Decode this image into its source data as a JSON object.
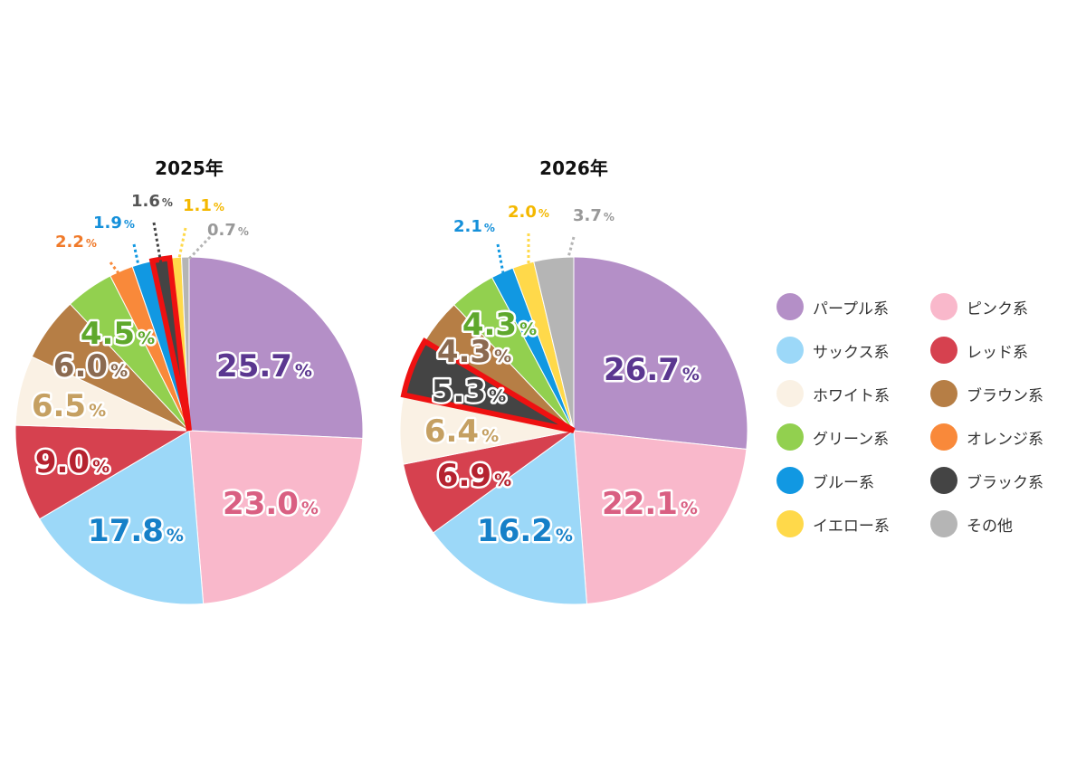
{
  "colors": {
    "purple": "#B48FC7",
    "pink": "#F9B8CB",
    "sax": "#9CD8F8",
    "white": "#FAF1E4",
    "green": "#92D04F",
    "blue": "#1198E2",
    "yellow": "#FFD94A",
    "red": "#D6414F",
    "brown": "#B67E45",
    "orange": "#F9893A",
    "black": "#444444",
    "other": "#B5B5B5",
    "highlight": "#EE1111"
  },
  "legend": [
    {
      "label": "パープル系",
      "color": "purple"
    },
    {
      "label": "ピンク系",
      "color": "pink"
    },
    {
      "label": "サックス系",
      "color": "sax"
    },
    {
      "label": "レッド系",
      "color": "red"
    },
    {
      "label": "ホワイト系",
      "color": "white"
    },
    {
      "label": "ブラウン系",
      "color": "brown"
    },
    {
      "label": "グリーン系",
      "color": "green"
    },
    {
      "label": "オレンジ系",
      "color": "orange"
    },
    {
      "label": "ブルー系",
      "color": "blue"
    },
    {
      "label": "ブラック系",
      "color": "black"
    },
    {
      "label": "イエロー系",
      "color": "yellow"
    },
    {
      "label": "その他",
      "color": "other"
    }
  ],
  "chart_data": [
    {
      "type": "pie",
      "title": "2025年",
      "unit": "%",
      "highlighted": "ブラック系",
      "slices": [
        {
          "label": "パープル系",
          "value": 25.7,
          "display": "25.7",
          "color": "purple",
          "text_color": "#5B3790"
        },
        {
          "label": "ピンク系",
          "value": 23.0,
          "display": "23.0",
          "color": "pink",
          "text_color": "#D95F82"
        },
        {
          "label": "サックス系",
          "value": 17.8,
          "display": "17.8",
          "color": "sax",
          "text_color": "#1680C8"
        },
        {
          "label": "レッド系",
          "value": 9.0,
          "display": "9.0",
          "color": "red",
          "text_color": "#B5222F"
        },
        {
          "label": "ホワイト系",
          "value": 6.5,
          "display": "6.5",
          "color": "white",
          "text_color": "#C5A062"
        },
        {
          "label": "ブラウン系",
          "value": 6.0,
          "display": "6.0",
          "color": "brown",
          "text_color": "#8B6A50"
        },
        {
          "label": "グリーン系",
          "value": 4.5,
          "display": "4.5",
          "color": "green",
          "text_color": "#5FA82C"
        },
        {
          "label": "オレンジ系",
          "value": 2.2,
          "display": "2.2",
          "color": "orange",
          "text_color": "#F07A2A"
        },
        {
          "label": "ブルー系",
          "value": 1.9,
          "display": "1.9",
          "color": "blue",
          "text_color": "#1590DA"
        },
        {
          "label": "ブラック系",
          "value": 1.6,
          "display": "1.6",
          "color": "black",
          "text_color": "#555555"
        },
        {
          "label": "イエロー系",
          "value": 1.1,
          "display": "1.1",
          "color": "yellow",
          "text_color": "#F4B800"
        },
        {
          "label": "その他",
          "value": 0.7,
          "display": "0.7",
          "color": "other",
          "text_color": "#999999"
        }
      ]
    },
    {
      "type": "pie",
      "title": "2026年",
      "unit": "%",
      "highlighted": "ブラック系",
      "slices": [
        {
          "label": "パープル系",
          "value": 26.7,
          "display": "26.7",
          "color": "purple",
          "text_color": "#5B3790"
        },
        {
          "label": "ピンク系",
          "value": 22.1,
          "display": "22.1",
          "color": "pink",
          "text_color": "#D95F82"
        },
        {
          "label": "サックス系",
          "value": 16.2,
          "display": "16.2",
          "color": "sax",
          "text_color": "#1680C8"
        },
        {
          "label": "レッド系",
          "value": 6.9,
          "display": "6.9",
          "color": "red",
          "text_color": "#B5222F"
        },
        {
          "label": "ホワイト系",
          "value": 6.4,
          "display": "6.4",
          "color": "white",
          "text_color": "#C5A062"
        },
        {
          "label": "ブラック系",
          "value": 5.3,
          "display": "5.3",
          "color": "black",
          "text_color": "#444444"
        },
        {
          "label": "ブラウン系",
          "value": 4.3,
          "display": "4.3",
          "color": "brown",
          "text_color": "#8B6A50"
        },
        {
          "label": "グリーン系",
          "value": 4.3,
          "display": "4.3",
          "color": "green",
          "text_color": "#5FA82C"
        },
        {
          "label": "ブルー系",
          "value": 2.1,
          "display": "2.1",
          "color": "blue",
          "text_color": "#1590DA"
        },
        {
          "label": "イエロー系",
          "value": 2.0,
          "display": "2.0",
          "color": "yellow",
          "text_color": "#F4B800"
        },
        {
          "label": "その他",
          "value": 3.7,
          "display": "3.7",
          "color": "other",
          "text_color": "#999999"
        }
      ]
    }
  ]
}
